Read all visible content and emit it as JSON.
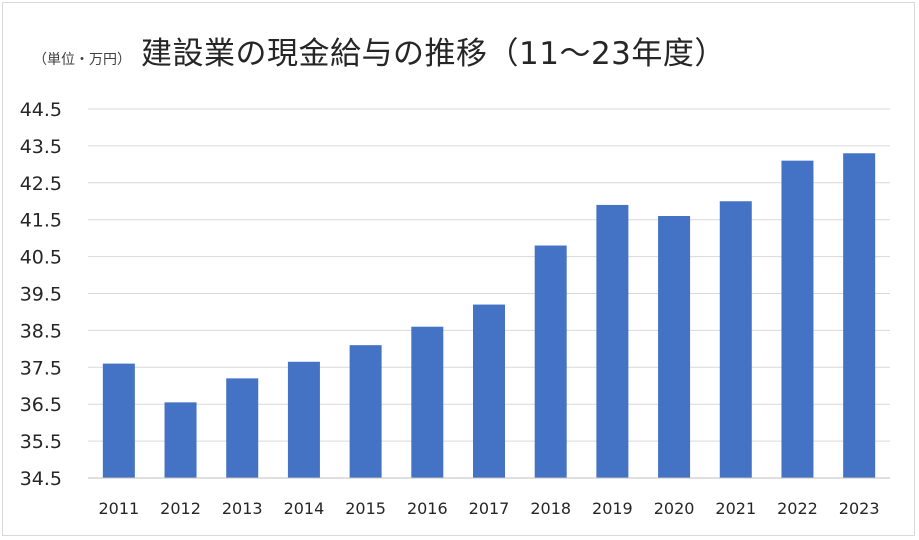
{
  "unit_label": "（単位・万円）",
  "title": "建設業の現金給与の推移（11〜23年度）",
  "colors": {
    "bar": "#4472C4",
    "grid": "#d9d9d9",
    "axis": "#bfbfbf"
  },
  "chart_data": {
    "type": "bar",
    "title": "建設業の現金給与の推移（11〜23年度）",
    "xlabel": "",
    "ylabel": "",
    "unit": "（単位・万円）",
    "categories": [
      "2011",
      "2012",
      "2013",
      "2014",
      "2015",
      "2016",
      "2017",
      "2018",
      "2019",
      "2020",
      "2021",
      "2022",
      "2023"
    ],
    "values": [
      37.6,
      36.55,
      37.2,
      37.65,
      38.1,
      38.6,
      39.2,
      40.8,
      41.9,
      41.6,
      42.0,
      43.1,
      43.3
    ],
    "ylim": [
      34.5,
      44.5
    ],
    "yticks": [
      "34.5",
      "35.5",
      "36.5",
      "37.5",
      "38.5",
      "39.5",
      "40.5",
      "41.5",
      "42.5",
      "43.5",
      "44.5"
    ],
    "grid": true,
    "legend": "none"
  }
}
